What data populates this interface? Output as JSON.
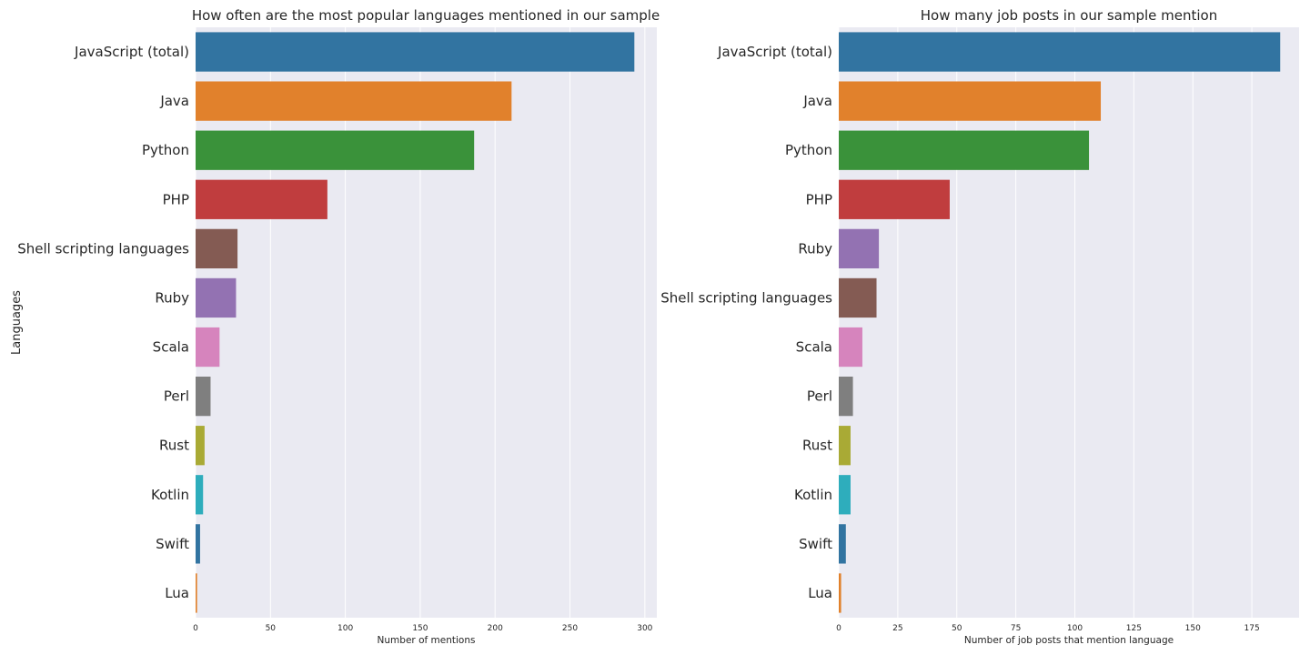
{
  "chart_data": [
    {
      "type": "bar",
      "orientation": "horizontal",
      "title": "How often are the most popular languages mentioned in our sample",
      "xlabel": "Number of mentions",
      "ylabel": "Languages",
      "xlim": [
        0,
        308
      ],
      "xticks": [
        0,
        50,
        100,
        150,
        200,
        250,
        300
      ],
      "grid": true,
      "categories": [
        "JavaScript (total)",
        "Java",
        "Python",
        "PHP",
        "Shell scripting languages",
        "Ruby",
        "Scala",
        "Perl",
        "Rust",
        "Kotlin",
        "Swift",
        "Lua"
      ],
      "values": [
        293,
        211,
        186,
        88,
        28,
        27,
        16,
        10,
        6,
        5,
        3,
        1
      ],
      "colors": [
        "#3274a1",
        "#e1812c",
        "#3a923a",
        "#c03d3e",
        "#845b53",
        "#9372b2",
        "#d684bd",
        "#7f7f7f",
        "#a9aa35",
        "#2eadbc",
        "#3274a1",
        "#e1812c"
      ]
    },
    {
      "type": "bar",
      "orientation": "horizontal",
      "title": "How many job posts in our sample mention",
      "xlabel": "Number of job posts that mention language",
      "ylabel": "",
      "xlim": [
        0,
        195
      ],
      "xticks": [
        0,
        25,
        50,
        75,
        100,
        125,
        150,
        175
      ],
      "grid": true,
      "categories": [
        "JavaScript (total)",
        "Java",
        "Python",
        "PHP",
        "Ruby",
        "Shell scripting languages",
        "Scala",
        "Perl",
        "Rust",
        "Kotlin",
        "Swift",
        "Lua"
      ],
      "values": [
        187,
        111,
        106,
        47,
        17,
        16,
        10,
        6,
        5,
        5,
        3,
        1
      ],
      "colors": [
        "#3274a1",
        "#e1812c",
        "#3a923a",
        "#c03d3e",
        "#9372b2",
        "#845b53",
        "#d684bd",
        "#7f7f7f",
        "#a9aa35",
        "#2eadbc",
        "#3274a1",
        "#e1812c"
      ]
    }
  ]
}
